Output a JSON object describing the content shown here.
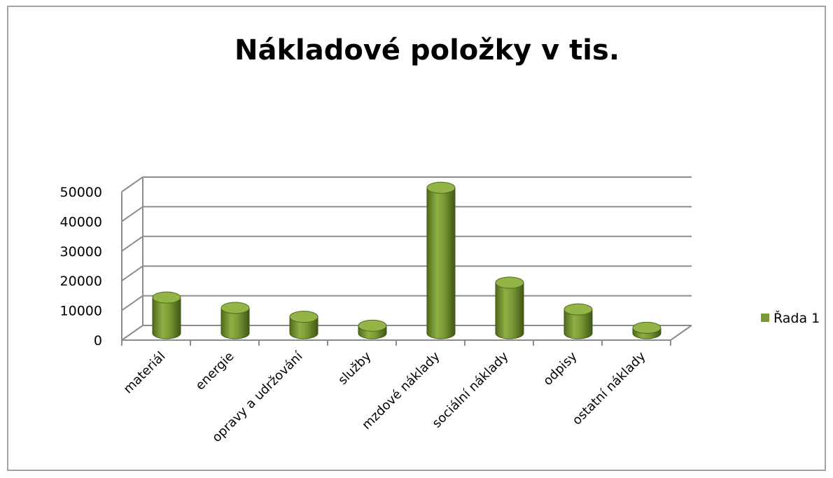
{
  "chart_data": {
    "type": "bar",
    "title": "Nákladové položky v tis.",
    "categories": [
      "materiál",
      "energie",
      "opravy a udržování",
      "služby",
      "mzdové náklady",
      "sociální náklady",
      "odpisy",
      "ostatní náklady"
    ],
    "series": [
      {
        "name": "Řada 1",
        "values": [
          12000,
          8500,
          5500,
          2500,
          49000,
          17000,
          8000,
          1800
        ]
      }
    ],
    "yticks": [
      "0",
      "10000",
      "20000",
      "30000",
      "40000",
      "50000"
    ],
    "ylim": [
      0,
      50000
    ],
    "grid": true,
    "legend_position": "right",
    "bar_shape": "cylinder",
    "colors": {
      "bar": "#7a9a35",
      "bar_dark": "#4e6a1a",
      "bar_top": "#93b548",
      "grid": "#8c8c8c"
    }
  }
}
